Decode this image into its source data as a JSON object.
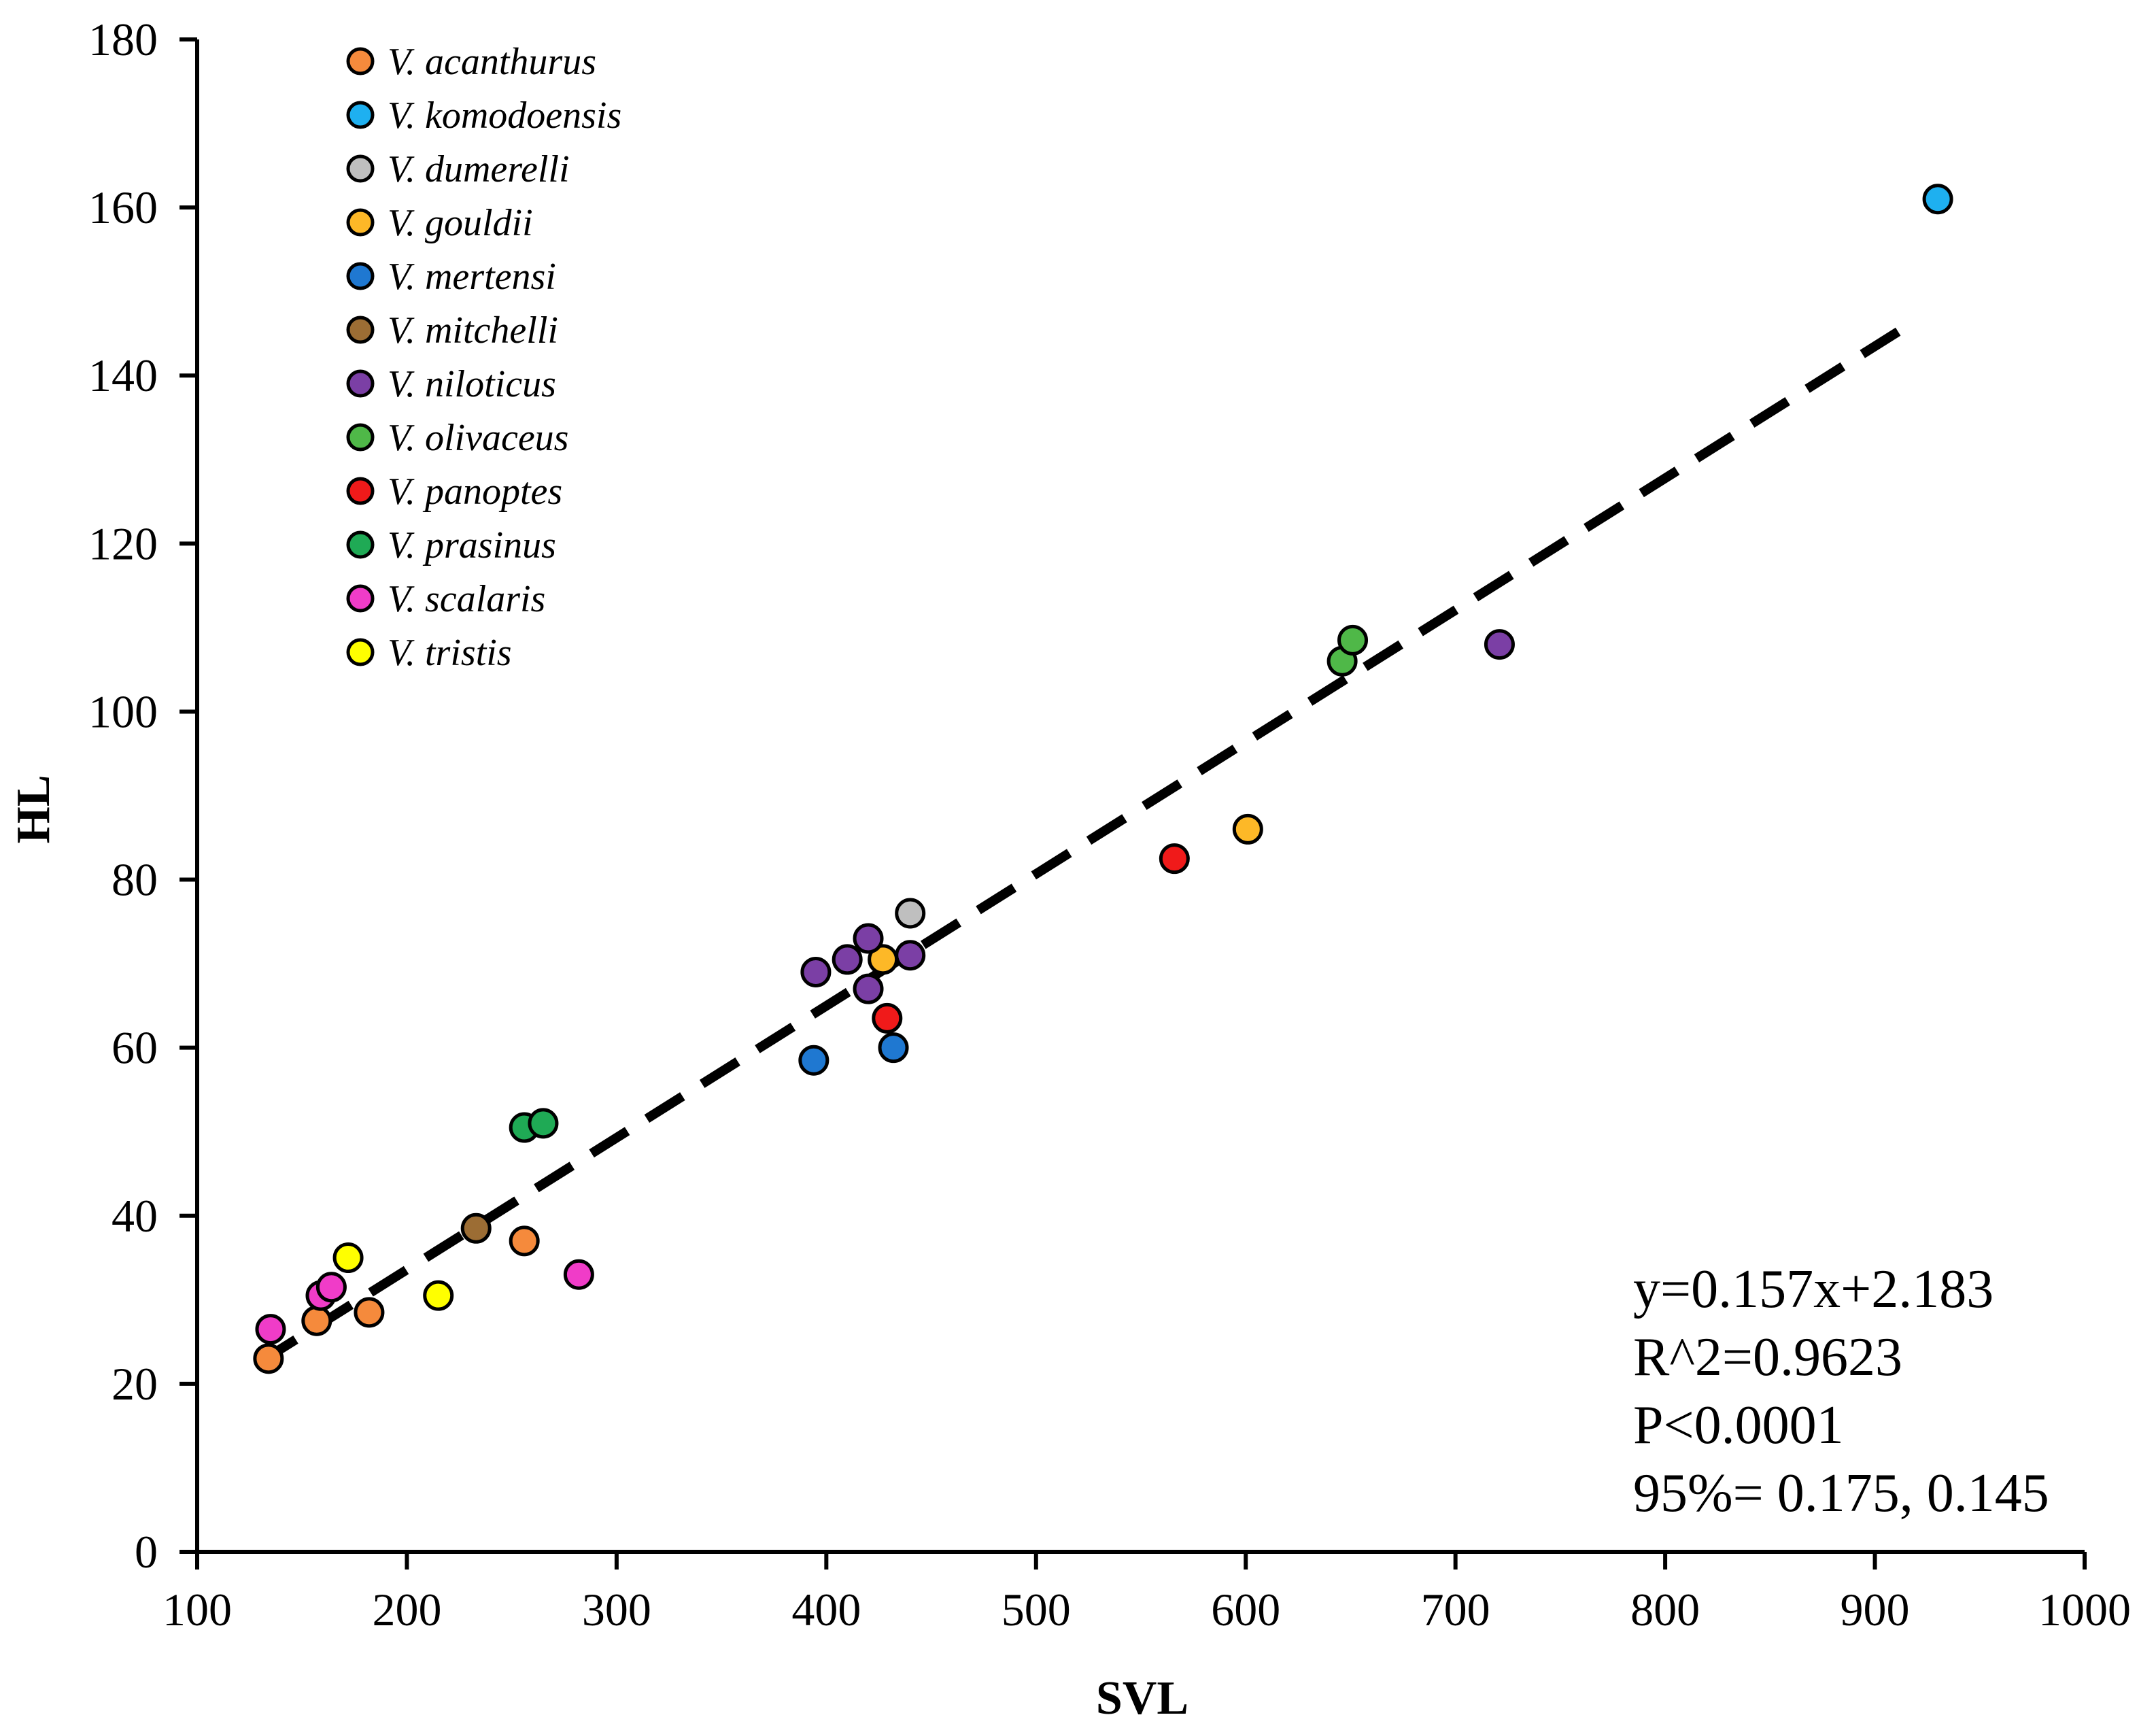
{
  "chart_data": {
    "type": "scatter",
    "xlabel": "SVL",
    "ylabel": "HL",
    "xlim": [
      100,
      1000
    ],
    "ylim": [
      0,
      180
    ],
    "xticks": [
      100,
      200,
      300,
      400,
      500,
      600,
      700,
      800,
      900,
      1000
    ],
    "yticks": [
      0,
      20,
      40,
      60,
      80,
      100,
      120,
      140,
      160,
      180
    ],
    "grid": false,
    "legend_position": "top-left",
    "series": [
      {
        "name": "V. acanthurus",
        "color": "#F58A3C",
        "points": [
          [
            134,
            23
          ],
          [
            157,
            27.5
          ],
          [
            182,
            28.5
          ],
          [
            256,
            37
          ]
        ]
      },
      {
        "name": "V. komodoensis",
        "color": "#1EB0F0",
        "points": [
          [
            930,
            161
          ]
        ]
      },
      {
        "name": "V. dumerelli",
        "color": "#BFBFBF",
        "points": [
          [
            440,
            76
          ]
        ]
      },
      {
        "name": "V. gouldii",
        "color": "#FDB827",
        "points": [
          [
            427,
            70.5
          ],
          [
            601,
            86
          ]
        ]
      },
      {
        "name": "V. mertensi",
        "color": "#1F78D1",
        "points": [
          [
            394,
            58.5
          ],
          [
            432,
            60
          ]
        ]
      },
      {
        "name": "V. mitchelli",
        "color": "#9C6D34",
        "points": [
          [
            233,
            38.5
          ]
        ]
      },
      {
        "name": "V. niloticus",
        "color": "#7B3FA5",
        "points": [
          [
            395,
            69
          ],
          [
            410,
            70.5
          ],
          [
            420,
            73
          ],
          [
            420,
            67
          ],
          [
            440,
            71
          ],
          [
            721,
            108
          ]
        ]
      },
      {
        "name": "V. olivaceus",
        "color": "#4FB848",
        "points": [
          [
            646,
            106
          ],
          [
            651,
            108.5
          ]
        ]
      },
      {
        "name": "V. panoptes",
        "color": "#F01A1A",
        "points": [
          [
            566,
            82.5
          ],
          [
            429,
            63.5
          ]
        ]
      },
      {
        "name": "V. prasinus",
        "color": "#1FAA55",
        "points": [
          [
            256,
            50.5
          ],
          [
            265,
            51
          ]
        ]
      },
      {
        "name": "V. scalaris",
        "color": "#F03CC8",
        "points": [
          [
            135,
            26.5
          ],
          [
            159,
            30.5
          ],
          [
            164,
            31.5
          ],
          [
            282,
            33
          ]
        ]
      },
      {
        "name": "V. tristis",
        "color": "#FFFF00",
        "points": [
          [
            172,
            35
          ],
          [
            215,
            30.5
          ]
        ]
      }
    ],
    "trendline": {
      "slope": 0.157,
      "intercept": 2.183,
      "x_range": [
        130,
        920
      ],
      "style": "dashed"
    },
    "annotations": {
      "equation": "y=0.157x+2.183",
      "r_squared": "R^2=0.9623",
      "p_value": "P<0.0001",
      "ci": "95%= 0.175, 0.145"
    }
  }
}
